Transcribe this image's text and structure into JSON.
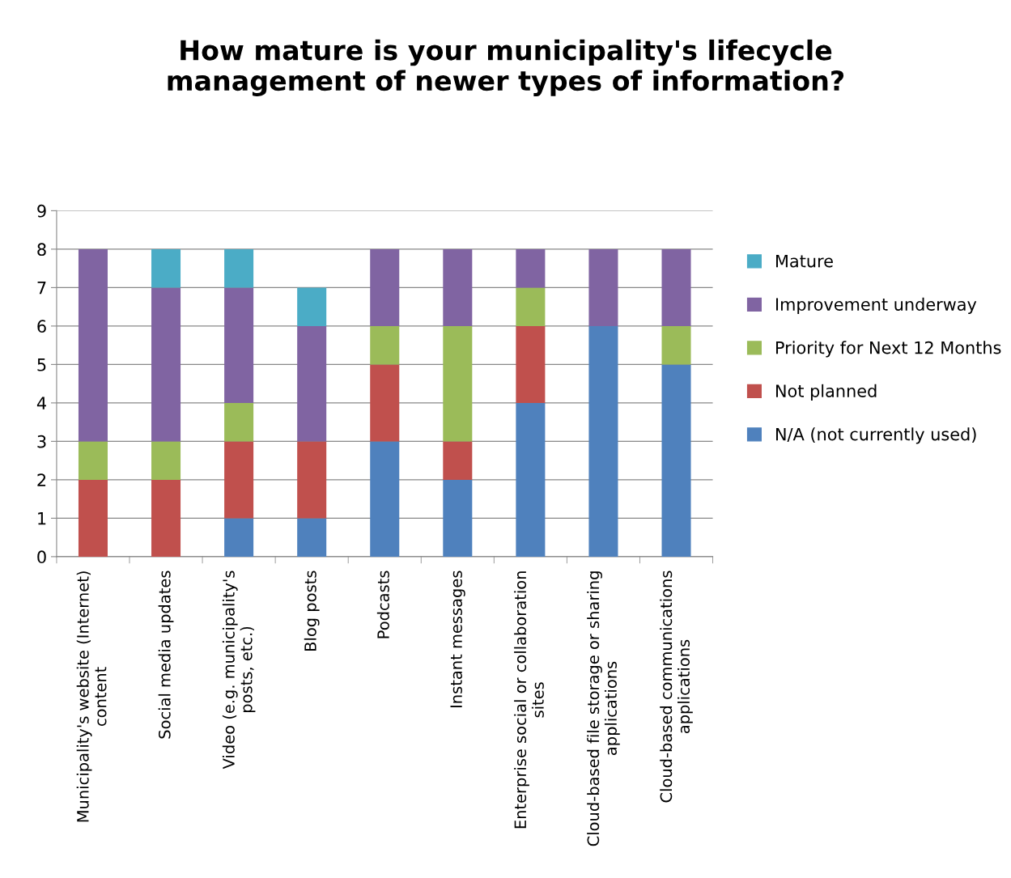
{
  "chart_data": {
    "type": "bar",
    "stacked": true,
    "title": "How mature is your municipality's lifecycle\nmanagement of newer types of information?",
    "categories": [
      "Municipality's website (Internet)\ncontent",
      "Social media updates",
      "Video (e.g. municipality's\nposts, etc.)",
      "Blog posts",
      "Podcasts",
      "Instant messages",
      "Enterprise social or collaboration\nsites",
      "Cloud-based file storage or sharing\napplications",
      "Cloud-based communications\napplications"
    ],
    "series": [
      {
        "name": "N/A (not currently used)",
        "color": "#4f81bd",
        "values": [
          0,
          0,
          1,
          1,
          3,
          2,
          4,
          6,
          5
        ]
      },
      {
        "name": "Not planned",
        "color": "#c0504d",
        "values": [
          2,
          2,
          2,
          2,
          2,
          1,
          2,
          0,
          0
        ]
      },
      {
        "name": "Priority for Next 12 Months",
        "color": "#9bbb59",
        "values": [
          1,
          1,
          1,
          0,
          1,
          3,
          1,
          0,
          1
        ]
      },
      {
        "name": "Improvement underway",
        "color": "#8064a2",
        "values": [
          5,
          4,
          3,
          3,
          2,
          2,
          1,
          2,
          2
        ]
      },
      {
        "name": "Mature",
        "color": "#4bacc6",
        "values": [
          0,
          1,
          1,
          1,
          0,
          0,
          0,
          0,
          0
        ]
      }
    ],
    "ylim": [
      0,
      9
    ],
    "yticks": [
      0,
      1,
      2,
      3,
      4,
      5,
      6,
      7,
      8,
      9
    ],
    "grid": "y",
    "legend": "right"
  }
}
